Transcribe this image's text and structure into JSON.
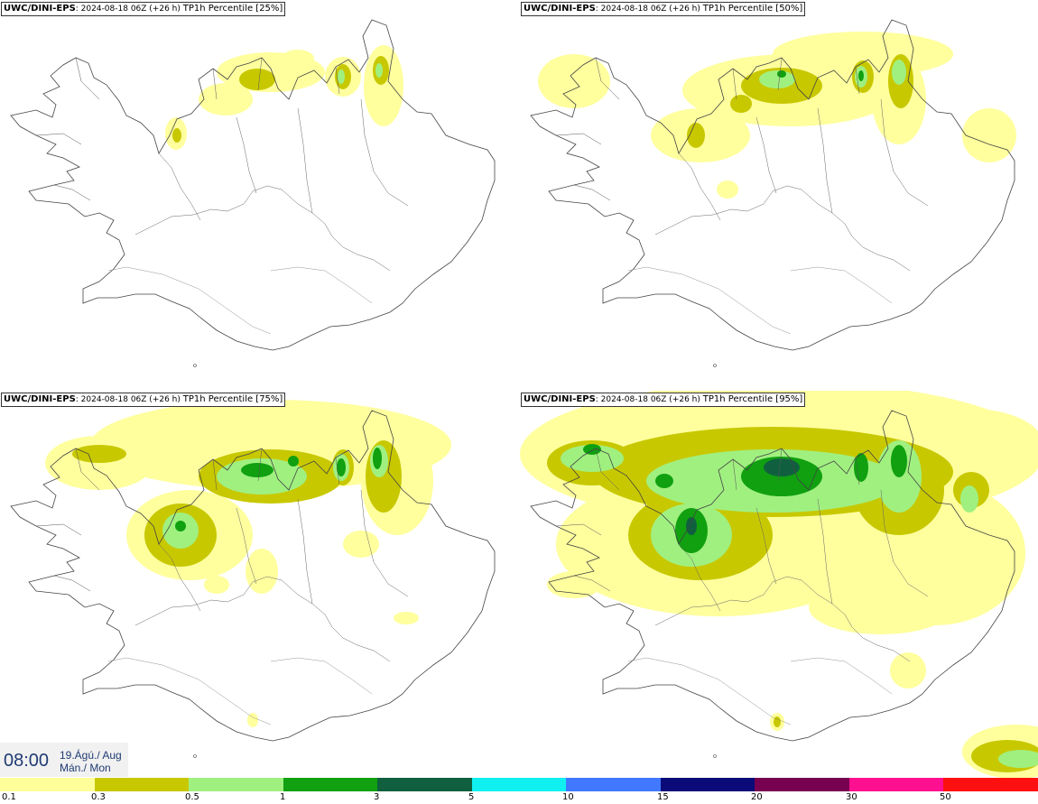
{
  "panels": [
    {
      "source": "UWC/DINI-EPS",
      "run": ": 2024-08-18 06Z (+26 h)",
      "product": "TP1h Percentile [25%]"
    },
    {
      "source": "UWC/DINI-EPS",
      "run": ": 2024-08-18 06Z (+26 h)",
      "product": "TP1h Percentile [50%]"
    },
    {
      "source": "UWC/DINI-EPS",
      "run": ": 2024-08-18 06Z (+26 h)",
      "product": "TP1h Percentile [75%]"
    },
    {
      "source": "UWC/DINI-EPS",
      "run": ": 2024-08-18 06Z (+26 h)",
      "product": "TP1h Percentile [95%]"
    }
  ],
  "valid_time": {
    "time": "08:00",
    "date_line1": "19.Ágú./ Aug",
    "date_line2": "Mán./ Mon"
  },
  "legend": {
    "colors": [
      "#ffff99",
      "#c8c800",
      "#a0f080",
      "#10a010",
      "#106040",
      "#10f0f0",
      "#4078ff",
      "#0a0a78",
      "#780050",
      "#ff1090",
      "#ff1010"
    ],
    "labels": [
      "0.1",
      "0.3",
      "0.5",
      "1",
      "3",
      "5",
      "10",
      "15",
      "20",
      "30",
      "50"
    ]
  },
  "colors": {
    "land_outline": "#444444",
    "title_text": "#000000",
    "time_text": "#1f3b73"
  }
}
